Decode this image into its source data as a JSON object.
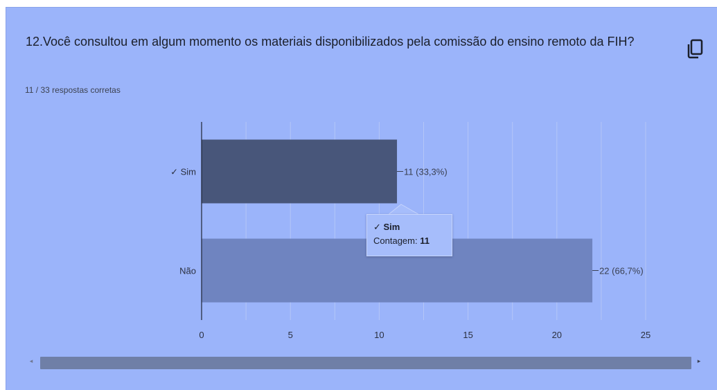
{
  "question": {
    "title": "12.Você consultou em algum momento os materiais disponibilizados pela comissão do ensino remoto da FIH?",
    "summary": "11 / 33 respostas corretas"
  },
  "copy_icon": "copy-icon",
  "tooltip": {
    "category": "✓ Sim",
    "label": "Contagem: ",
    "value": "11"
  },
  "colors": {
    "card_bg": "#9bb4fa",
    "bar_correct": "#48567a",
    "bar_other": "#6f84c0",
    "grid": "#b4c6f7",
    "axis": "#1f2433"
  },
  "chart_data": {
    "type": "bar",
    "orientation": "horizontal",
    "categories": [
      "✓ Sim",
      "Não"
    ],
    "values": [
      11,
      22
    ],
    "data_labels": [
      "11 (33,3%)",
      "22 (66,7%)"
    ],
    "xlim": [
      0,
      25
    ],
    "xticks": [
      "0",
      "5",
      "10",
      "15",
      "20",
      "25"
    ],
    "title": "",
    "xlabel": "",
    "ylabel": "",
    "grid": true
  },
  "scrollbar": {
    "left_arrow": "◂",
    "right_arrow": "▸"
  }
}
